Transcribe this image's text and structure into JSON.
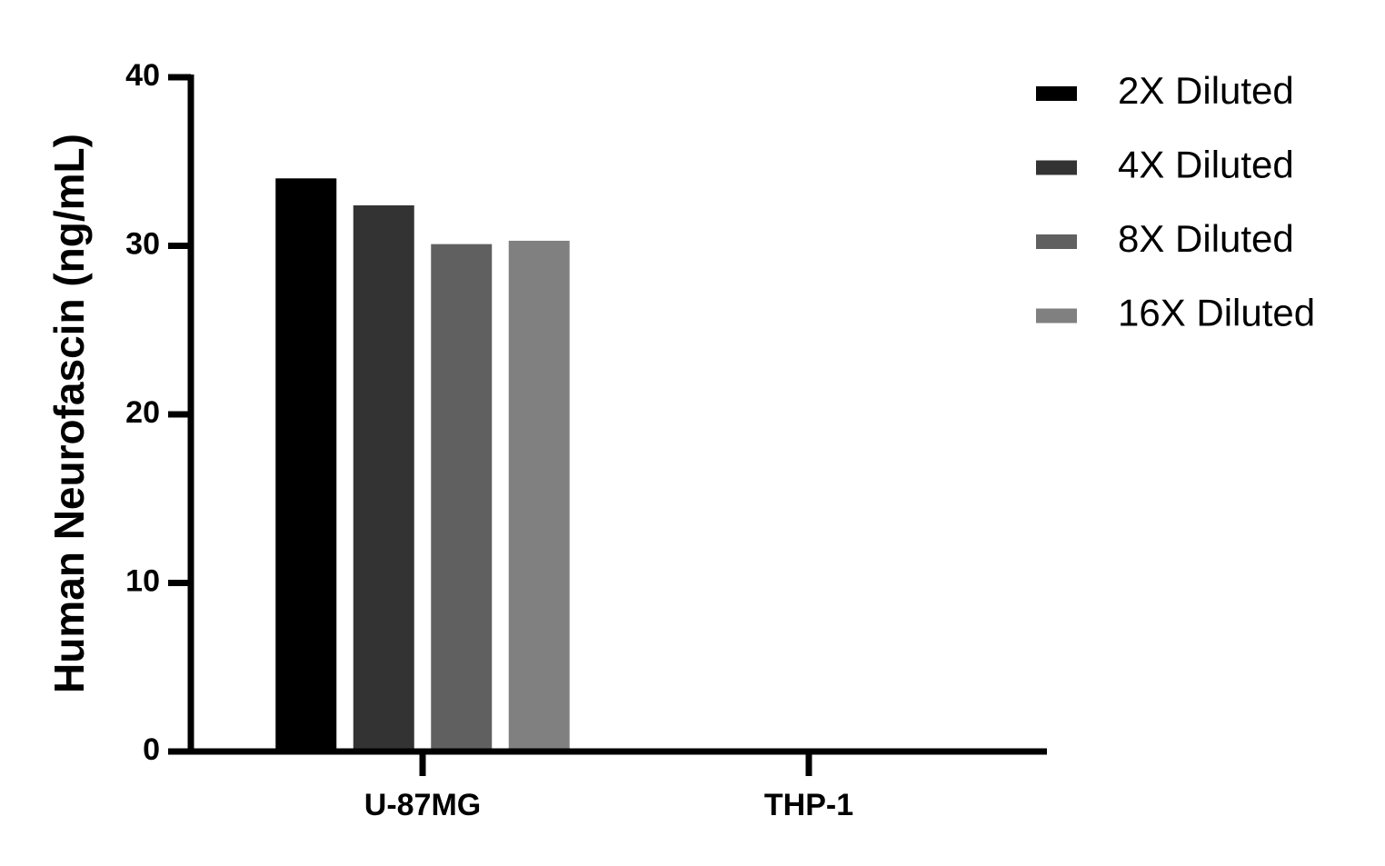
{
  "chart_data": {
    "type": "bar",
    "y_label": "Human Neurofascin (ng/mL)",
    "categories": [
      "U-87MG",
      "THP-1"
    ],
    "series": [
      {
        "name": "2X Diluted",
        "color": "#000000",
        "values": [
          34,
          0
        ]
      },
      {
        "name": "4X Diluted",
        "color": "#333333",
        "values": [
          32.4,
          0
        ]
      },
      {
        "name": "8X Diluted",
        "color": "#606060",
        "values": [
          30.1,
          0
        ]
      },
      {
        "name": "16X Diluted",
        "color": "#808080",
        "values": [
          30.3,
          0
        ]
      }
    ],
    "ylim": [
      0,
      40
    ],
    "yticks": [
      0,
      10,
      20,
      30,
      40
    ],
    "grid": false,
    "legend": "right"
  }
}
